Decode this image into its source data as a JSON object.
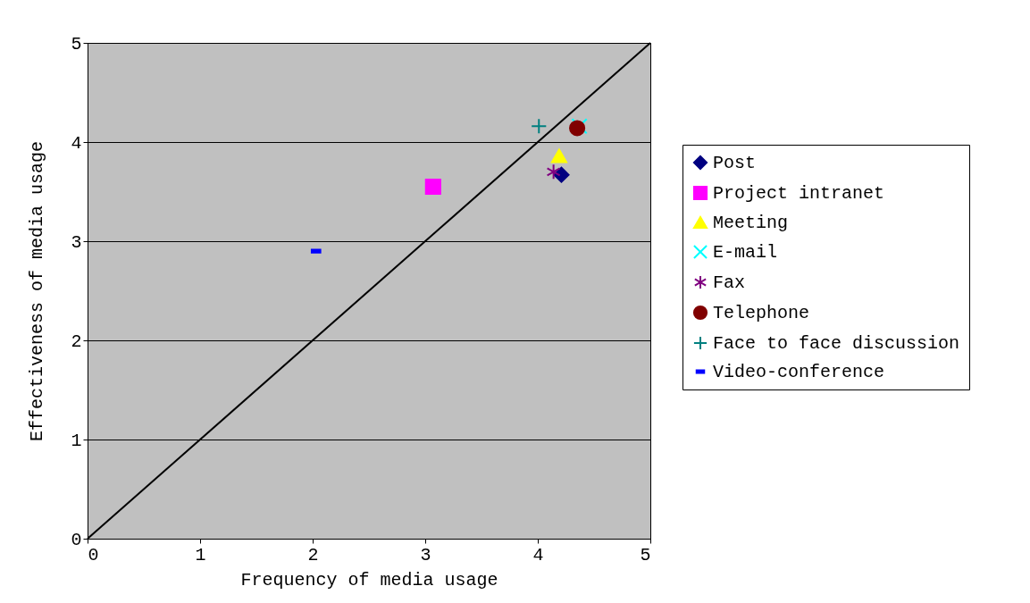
{
  "chart_data": {
    "type": "scatter",
    "xlabel": "Frequency of media usage",
    "ylabel": "Effectiveness of media usage",
    "xlim": [
      0,
      5
    ],
    "ylim": [
      0,
      5
    ],
    "xticks": [
      0,
      1,
      2,
      3,
      4,
      5
    ],
    "yticks": [
      0,
      1,
      2,
      3,
      4,
      5
    ],
    "grid": "y",
    "legend": "right",
    "series": [
      {
        "name": "Post",
        "color": "#000080",
        "marker": "diamond",
        "x": [
          4.21
        ],
        "values": [
          3.67
        ]
      },
      {
        "name": "Project intranet",
        "color": "#ff00ff",
        "marker": "square",
        "x": [
          3.07
        ],
        "values": [
          3.55
        ]
      },
      {
        "name": "Meeting",
        "color": "#ffff00",
        "marker": "triangle",
        "x": [
          4.19
        ],
        "values": [
          3.86
        ]
      },
      {
        "name": "E-mail",
        "color": "#00ffff",
        "marker": "x",
        "x": [
          4.37
        ],
        "values": [
          4.16
        ]
      },
      {
        "name": "Fax",
        "color": "#800080",
        "marker": "cross",
        "x": [
          4.14
        ],
        "values": [
          3.7
        ]
      },
      {
        "name": "Telephone",
        "color": "#800000",
        "marker": "circle",
        "x": [
          4.35
        ],
        "values": [
          4.14
        ]
      },
      {
        "name": "Face to face discussion",
        "color": "#008080",
        "marker": "plus",
        "x": [
          4.01
        ],
        "values": [
          4.16
        ]
      },
      {
        "name": "Video-conference",
        "color": "#0000ff",
        "x": [
          2.03
        ],
        "values": [
          2.9
        ]
      },
      {
        "type": "line",
        "color": "#000000",
        "x": [
          0,
          5
        ],
        "values": [
          0,
          5
        ]
      }
    ]
  }
}
